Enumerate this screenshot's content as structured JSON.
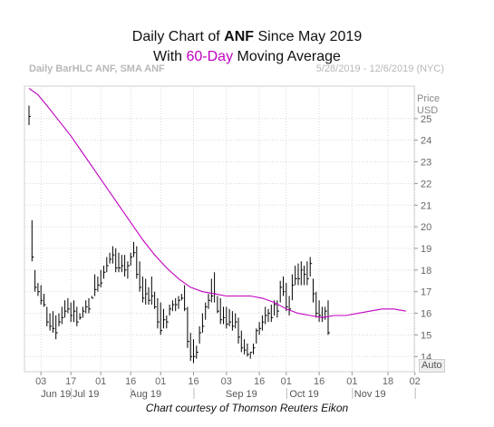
{
  "header": {
    "title_prefix": "Daily Chart of ",
    "title_ticker": "ANF",
    "title_suffix": " Since May 2019",
    "subtitle_prefix": "With ",
    "subtitle_accent": "60-Day",
    "subtitle_suffix": " Moving Average"
  },
  "info": {
    "left": "Daily BarHLC ANF, SMA ANF",
    "right": "5/28/2019 - 12/6/2019 (NYC)"
  },
  "price_header": [
    "Price",
    "USD"
  ],
  "auto_label": "Auto",
  "credit": "Chart courtesy of Thomson Reuters Eikon",
  "colors": {
    "bars": "#000000",
    "sma": "#c000c0",
    "grid": "#d8d8d8"
  },
  "chart_data": {
    "type": "line",
    "title": "Daily Chart of ANF Since May 2019",
    "subtitle": "With 60-Day Moving Average",
    "ylabel": "Price USD",
    "ylim": [
      13.3,
      26.5
    ],
    "y_ticks": [
      14,
      15,
      16,
      17,
      18,
      19,
      20,
      21,
      22,
      23,
      24,
      25
    ],
    "x_day_ticks": [
      "03",
      "17",
      "01",
      "16",
      "01",
      "16",
      "03",
      "16",
      "01",
      "16",
      "01",
      "18",
      "02"
    ],
    "x_month_labels": [
      "Jun 19",
      "Jul 19",
      "Aug 19",
      "Sep 19",
      "Oct 19",
      "Nov 19"
    ],
    "x_tick_index": [
      4,
      14,
      24,
      34,
      44,
      55,
      66,
      77,
      86,
      97,
      108,
      120,
      129
    ],
    "month_label_index": [
      9,
      19,
      39,
      71,
      92,
      114
    ],
    "grid": true,
    "series": [
      {
        "name": "ANF",
        "kind": "bar_hlc",
        "high": [
          25.6,
          20.3,
          18.0,
          17.4,
          17.3,
          16.9,
          16.3,
          16.0,
          16.1,
          15.9,
          16.0,
          16.3,
          16.6,
          16.7,
          16.5,
          16.6,
          16.3,
          16.0,
          16.3,
          16.6,
          16.7,
          16.8,
          17.8,
          17.7,
          18.0,
          18.2,
          18.6,
          18.8,
          19.1,
          19.0,
          18.8,
          18.7,
          18.7,
          18.4,
          18.8,
          19.3,
          19.1,
          18.4,
          17.7,
          17.6,
          17.2,
          17.7,
          17.0,
          16.7,
          16.5,
          16.2,
          15.9,
          16.4,
          16.6,
          16.7,
          16.8,
          16.9,
          17.3,
          16.3,
          15.1,
          14.8,
          14.5,
          15.4,
          16.0,
          16.5,
          16.9,
          17.6,
          17.9,
          16.8,
          16.7,
          16.3,
          16.3,
          16.2,
          16.1,
          16.0,
          15.8,
          15.2,
          14.8,
          14.6,
          14.2,
          14.6,
          15.3,
          15.6,
          15.9,
          16.3,
          16.2,
          16.4,
          16.6,
          16.6,
          17.5,
          17.7,
          17.4,
          16.8,
          17.8,
          18.2,
          18.3,
          18.4,
          18.2,
          18.4,
          18.6,
          17.6,
          17.0,
          16.6,
          16.3,
          16.3,
          16.6
        ],
        "low": [
          24.7,
          18.4,
          17.0,
          16.8,
          16.4,
          16.3,
          15.4,
          15.2,
          15.1,
          14.8,
          15.4,
          15.5,
          15.8,
          16.0,
          15.6,
          15.6,
          15.4,
          15.7,
          15.8,
          16.0,
          16.0,
          16.7,
          16.8,
          17.0,
          17.2,
          17.6,
          17.9,
          18.3,
          18.3,
          17.9,
          17.9,
          17.9,
          17.7,
          17.6,
          18.2,
          18.6,
          17.6,
          17.0,
          16.5,
          16.4,
          16.4,
          16.4,
          16.2,
          15.3,
          15.0,
          15.3,
          15.3,
          15.9,
          16.1,
          16.1,
          16.2,
          16.6,
          16.1,
          14.4,
          13.8,
          13.7,
          13.9,
          14.6,
          15.1,
          15.7,
          16.2,
          16.5,
          16.5,
          16.0,
          15.5,
          15.5,
          15.3,
          15.4,
          15.2,
          15.3,
          14.6,
          14.2,
          14.1,
          14.0,
          13.9,
          14.1,
          14.6,
          15.0,
          15.2,
          15.5,
          15.6,
          15.6,
          15.9,
          15.8,
          16.5,
          16.8,
          16.1,
          15.9,
          16.6,
          17.3,
          17.3,
          17.3,
          17.3,
          17.3,
          17.7,
          16.5,
          15.8,
          15.6,
          15.6,
          15.7,
          15.0
        ],
        "close": [
          25.1,
          18.6,
          17.2,
          17.0,
          16.6,
          16.4,
          15.6,
          15.4,
          15.3,
          15.1,
          15.6,
          15.8,
          16.1,
          16.2,
          15.9,
          16.1,
          15.6,
          15.8,
          16.1,
          16.3,
          16.2,
          16.7,
          17.1,
          17.3,
          17.4,
          17.9,
          18.2,
          18.5,
          18.7,
          18.1,
          18.1,
          18.2,
          18.0,
          18.2,
          18.6,
          18.8,
          17.8,
          17.2,
          16.7,
          16.9,
          16.6,
          16.8,
          16.3,
          15.6,
          15.2,
          15.7,
          15.6,
          16.2,
          16.4,
          16.4,
          16.6,
          16.7,
          16.2,
          14.7,
          14.0,
          14.0,
          14.2,
          15.1,
          15.4,
          16.3,
          16.6,
          16.8,
          16.9,
          16.1,
          15.7,
          15.8,
          15.5,
          15.6,
          15.4,
          15.6,
          14.9,
          14.4,
          14.3,
          14.1,
          14.2,
          14.4,
          15.2,
          15.3,
          15.6,
          15.9,
          16.0,
          15.8,
          16.4,
          16.1,
          17.2,
          17.0,
          16.3,
          16.2,
          17.3,
          17.6,
          17.6,
          18.0,
          17.8,
          17.6,
          18.3,
          16.9,
          16.0,
          15.9,
          15.8,
          16.1,
          15.1
        ]
      },
      {
        "name": "SMA ANF",
        "kind": "sma_60",
        "points": [
          [
            0,
            26.4
          ],
          [
            3,
            26.1
          ],
          [
            6,
            25.6
          ],
          [
            10,
            24.9
          ],
          [
            14,
            24.2
          ],
          [
            18,
            23.4
          ],
          [
            22,
            22.6
          ],
          [
            26,
            21.8
          ],
          [
            30,
            21.0
          ],
          [
            34,
            20.2
          ],
          [
            38,
            19.4
          ],
          [
            42,
            18.7
          ],
          [
            46,
            18.1
          ],
          [
            50,
            17.6
          ],
          [
            54,
            17.2
          ],
          [
            58,
            17.0
          ],
          [
            62,
            16.9
          ],
          [
            66,
            16.8
          ],
          [
            70,
            16.8
          ],
          [
            74,
            16.8
          ],
          [
            78,
            16.7
          ],
          [
            82,
            16.5
          ],
          [
            86,
            16.2
          ],
          [
            90,
            16.0
          ],
          [
            94,
            15.9
          ],
          [
            98,
            15.8
          ],
          [
            102,
            15.9
          ],
          [
            106,
            15.9
          ],
          [
            110,
            16.0
          ],
          [
            114,
            16.1
          ],
          [
            118,
            16.2
          ],
          [
            122,
            16.2
          ],
          [
            126,
            16.1
          ]
        ]
      }
    ]
  }
}
